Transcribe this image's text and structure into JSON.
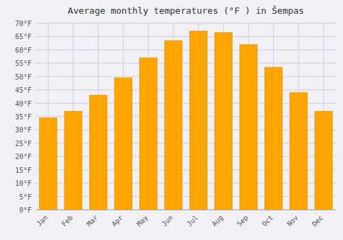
{
  "chart_data": {
    "type": "bar",
    "title": "Average monthly temperatures (°F ) in Šempas",
    "categories": [
      "Jan",
      "Feb",
      "Mar",
      "Apr",
      "May",
      "Jun",
      "Jul",
      "Aug",
      "Sep",
      "Oct",
      "Nov",
      "Dec"
    ],
    "values": [
      34.5,
      37.0,
      43.0,
      49.5,
      57.0,
      63.5,
      67.0,
      66.5,
      62.0,
      53.5,
      44.0,
      37.0
    ],
    "color": "#FFA500",
    "ylim": [
      0,
      70
    ],
    "yticks": [
      {
        "value": 0,
        "label": "0°F"
      },
      {
        "value": 5,
        "label": "5°F"
      },
      {
        "value": 10,
        "label": "10°F"
      },
      {
        "value": 15,
        "label": "15°F"
      },
      {
        "value": 20,
        "label": "20°F"
      },
      {
        "value": 25,
        "label": "25°F"
      },
      {
        "value": 30,
        "label": "30°F"
      },
      {
        "value": 35,
        "label": "35°F"
      },
      {
        "value": 40,
        "label": "40°F"
      },
      {
        "value": 45,
        "label": "45°F"
      },
      {
        "value": 50,
        "label": "50°F"
      },
      {
        "value": 55,
        "label": "55°F"
      },
      {
        "value": 60,
        "label": "60°F"
      },
      {
        "value": 65,
        "label": "65°F"
      },
      {
        "value": 70,
        "label": "70°F"
      }
    ],
    "grid": true
  }
}
